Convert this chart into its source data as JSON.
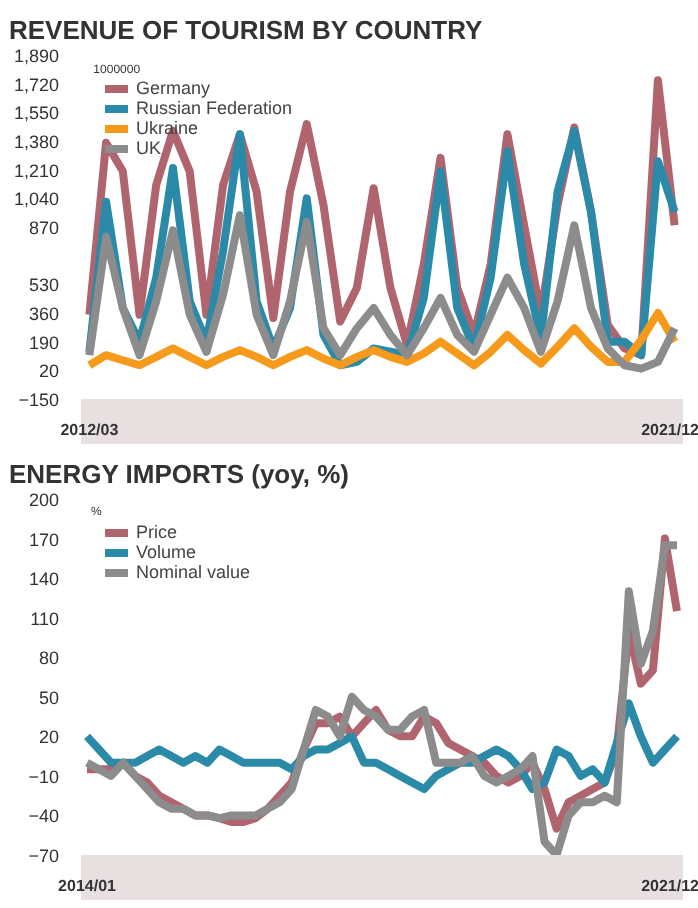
{
  "chart_data": [
    {
      "type": "line",
      "title": "REVENUE OF TOURISM BY COUNTRY",
      "ylabel": "1000000",
      "categories": [
        "2012/03",
        null,
        null,
        null,
        null,
        null,
        null,
        null,
        null,
        null,
        null,
        null,
        null,
        null,
        null,
        null,
        null,
        null,
        null,
        null,
        null,
        null,
        null,
        null,
        null,
        null,
        null,
        null,
        null,
        null,
        null,
        null,
        null,
        null,
        null,
        "2021/12"
      ],
      "ylim": [
        -150,
        1890
      ],
      "yticks": [
        -150,
        20,
        190,
        360,
        530,
        870,
        {
          "value": 1040,
          "label": "1,040"
        },
        {
          "value": 1210,
          "label": "1,210"
        },
        {
          "value": 1380,
          "label": "1,380"
        },
        {
          "value": 1550,
          "label": "1,550"
        },
        {
          "value": 1720,
          "label": "1,720"
        },
        {
          "value": 1890,
          "label": "1,890"
        }
      ],
      "series": [
        {
          "name": "Germany",
          "color": "#b0646e",
          "values": [
            350,
            1370,
            1200,
            350,
            1120,
            1440,
            1200,
            350,
            1120,
            1420,
            1080,
            330,
            1080,
            1480,
            1000,
            310,
            510,
            1100,
            510,
            170,
            650,
            1280,
            510,
            230,
            650,
            1420,
            880,
            350,
            1000,
            1460,
            960,
            290,
            150,
            110,
            1740,
            880
          ]
        },
        {
          "name": "Russian Federation",
          "color": "#2a8aa8",
          "values": [
            130,
            1020,
            390,
            190,
            570,
            1220,
            430,
            190,
            730,
            1420,
            430,
            150,
            390,
            1040,
            230,
            50,
            70,
            150,
            130,
            110,
            450,
            1200,
            390,
            150,
            570,
            1320,
            650,
            210,
            1080,
            1440,
            960,
            190,
            190,
            110,
            1260,
            960
          ]
        },
        {
          "name": "Ukraine",
          "color": "#f59a1b",
          "values": [
            50,
            110,
            80,
            50,
            100,
            150,
            100,
            50,
            100,
            140,
            100,
            50,
            100,
            140,
            90,
            50,
            100,
            140,
            100,
            70,
            120,
            190,
            120,
            50,
            130,
            230,
            140,
            60,
            160,
            270,
            160,
            70,
            70,
            200,
            360,
            190
          ]
        },
        {
          "name": "UK",
          "color": "#8c8c8c",
          "values": [
            110,
            810,
            390,
            110,
            430,
            850,
            350,
            130,
            470,
            940,
            350,
            110,
            430,
            900,
            270,
            110,
            270,
            390,
            230,
            110,
            270,
            450,
            230,
            130,
            350,
            570,
            390,
            130,
            430,
            880,
            390,
            150,
            50,
            30,
            70,
            270
          ]
        }
      ],
      "legend": "top left",
      "grid": false,
      "line_style": "solid",
      "marker": "none"
    },
    {
      "type": "line",
      "title": "ENERGY IMPORTS (yoy, %)",
      "ylabel": "%",
      "categories": [
        "2014/01",
        null,
        null,
        null,
        null,
        null,
        null,
        null,
        null,
        null,
        null,
        null,
        null,
        null,
        null,
        null,
        null,
        null,
        null,
        null,
        null,
        null,
        null,
        null,
        null,
        null,
        null,
        null,
        null,
        null,
        null,
        null,
        null,
        null,
        null,
        null,
        null,
        null,
        null,
        null,
        null,
        null,
        null,
        null,
        null,
        null,
        null,
        null,
        null,
        "2021/12"
      ],
      "ylim": [
        -70,
        200
      ],
      "yticks": [
        -70,
        -40,
        -10,
        20,
        50,
        80,
        110,
        140,
        170,
        200
      ],
      "series": [
        {
          "name": "Price",
          "color": "#b0646e",
          "values": [
            -5,
            -5,
            -5,
            0,
            -10,
            -15,
            -25,
            -30,
            -35,
            -40,
            -40,
            -42,
            -45,
            -45,
            -42,
            -35,
            -25,
            -15,
            10,
            30,
            30,
            35,
            20,
            30,
            40,
            25,
            20,
            20,
            35,
            30,
            15,
            10,
            5,
            0,
            -10,
            -15,
            -10,
            0,
            -20,
            -50,
            -30,
            -25,
            -20,
            -15,
            10,
            100,
            60,
            70,
            170,
            115
          ]
        },
        {
          "name": "Volume",
          "color": "#2a8aa8",
          "values": [
            20,
            10,
            0,
            0,
            0,
            5,
            10,
            5,
            0,
            5,
            0,
            10,
            5,
            0,
            0,
            0,
            0,
            -5,
            5,
            10,
            10,
            15,
            20,
            0,
            0,
            -5,
            -10,
            -15,
            -20,
            -10,
            -5,
            0,
            0,
            5,
            10,
            5,
            -5,
            -20,
            -15,
            10,
            5,
            -10,
            -5,
            -15,
            15,
            45,
            20,
            0,
            10,
            20
          ]
        },
        {
          "name": "Nominal value",
          "color": "#8c8c8c",
          "values": [
            0,
            -5,
            -10,
            0,
            -10,
            -20,
            -30,
            -35,
            -35,
            -40,
            -40,
            -42,
            -40,
            -40,
            -40,
            -35,
            -30,
            -20,
            10,
            40,
            35,
            20,
            50,
            40,
            35,
            25,
            25,
            35,
            40,
            0,
            0,
            0,
            5,
            -10,
            -15,
            -10,
            -5,
            5,
            -60,
            -70,
            -40,
            -30,
            -30,
            -25,
            -30,
            130,
            75,
            100,
            165,
            165
          ]
        }
      ],
      "legend": "top left",
      "grid": false,
      "line_style": "solid",
      "marker": "none"
    }
  ]
}
